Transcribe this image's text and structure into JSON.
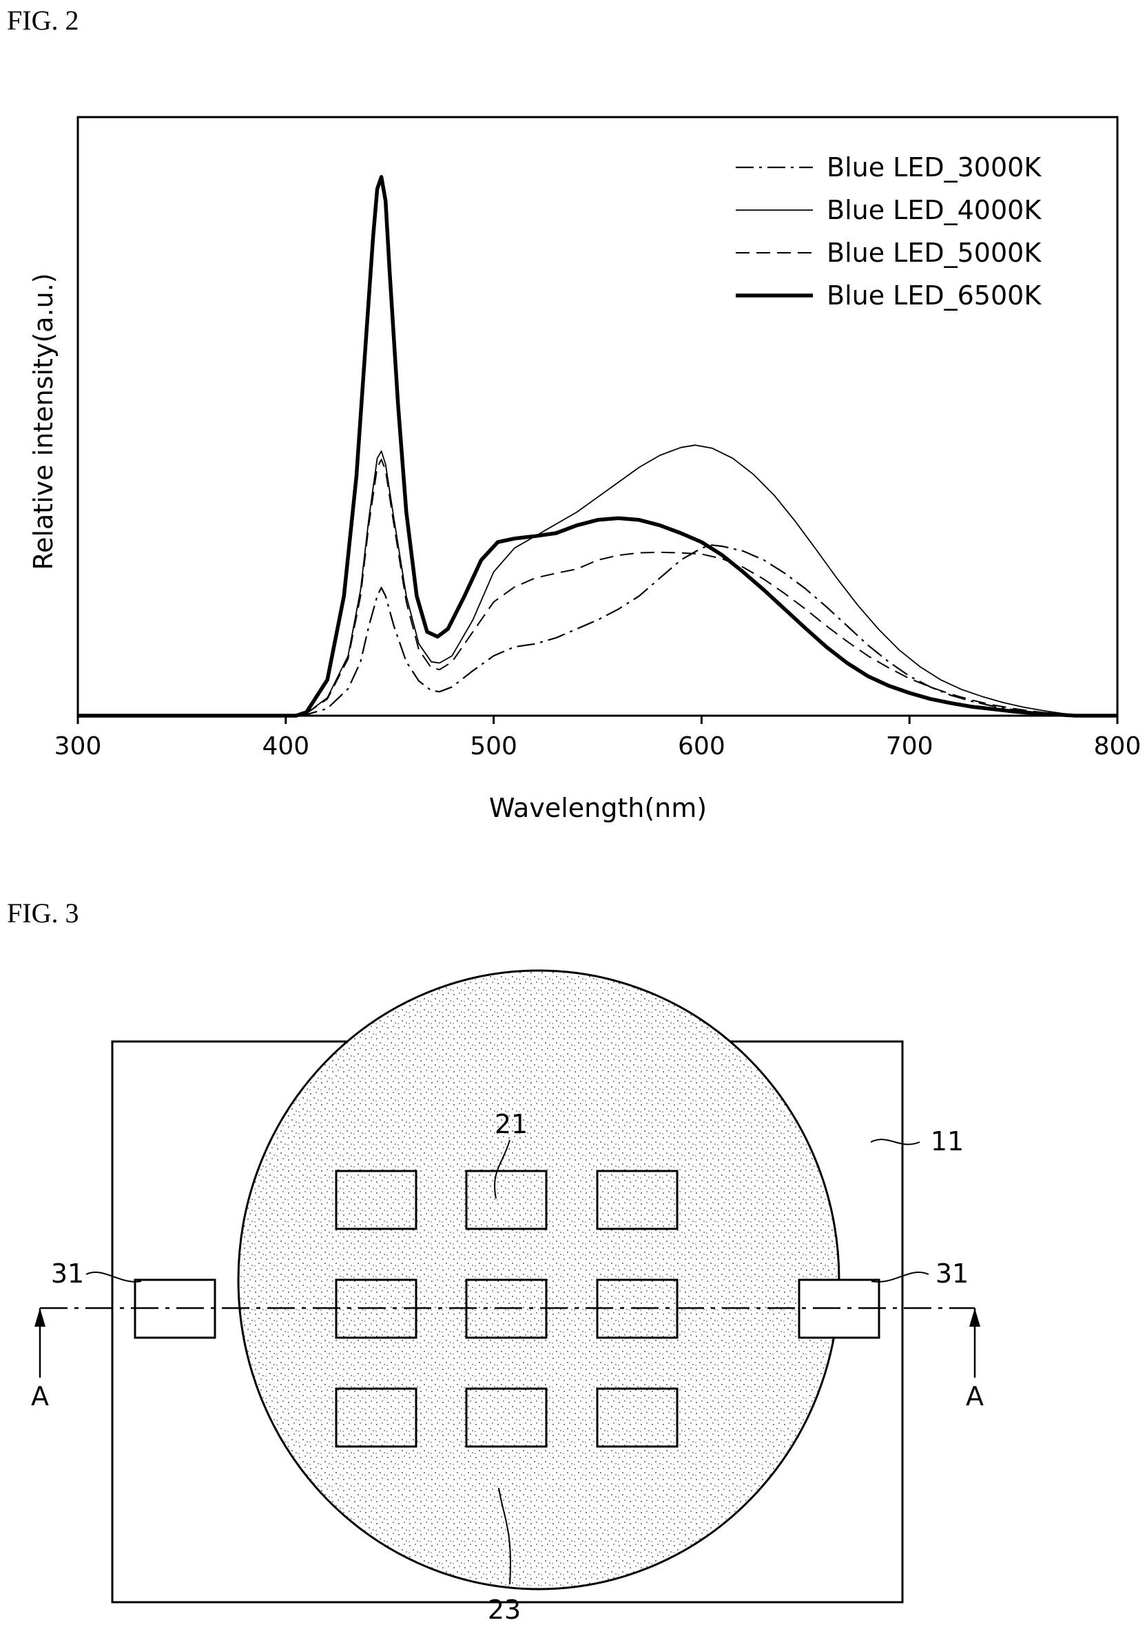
{
  "fig2": {
    "label": "FIG. 2",
    "chart_data": {
      "type": "line",
      "title": "",
      "xlabel": "Wavelength(nm)",
      "ylabel": "Relative intensity(a.u.)",
      "xlim": [
        300,
        800
      ],
      "ylim": [
        0,
        1.0
      ],
      "xticks": [
        300,
        400,
        500,
        600,
        700,
        800
      ],
      "legend_position": "top-right",
      "series": [
        {
          "name": "Blue LED_3000K",
          "style": "dash-dot",
          "points": [
            [
              300,
              0
            ],
            [
              400,
              0
            ],
            [
              410,
              0.002
            ],
            [
              420,
              0.012
            ],
            [
              430,
              0.045
            ],
            [
              436,
              0.09
            ],
            [
              440,
              0.15
            ],
            [
              444,
              0.2
            ],
            [
              446,
              0.214
            ],
            [
              448,
              0.2
            ],
            [
              452,
              0.15
            ],
            [
              458,
              0.09
            ],
            [
              464,
              0.058
            ],
            [
              470,
              0.042
            ],
            [
              474,
              0.04
            ],
            [
              480,
              0.048
            ],
            [
              490,
              0.075
            ],
            [
              500,
              0.1
            ],
            [
              510,
              0.115
            ],
            [
              520,
              0.12
            ],
            [
              530,
              0.13
            ],
            [
              540,
              0.145
            ],
            [
              550,
              0.16
            ],
            [
              560,
              0.178
            ],
            [
              570,
              0.2
            ],
            [
              580,
              0.23
            ],
            [
              590,
              0.26
            ],
            [
              600,
              0.28
            ],
            [
              605,
              0.285
            ],
            [
              610,
              0.283
            ],
            [
              620,
              0.275
            ],
            [
              630,
              0.26
            ],
            [
              640,
              0.238
            ],
            [
              650,
              0.212
            ],
            [
              660,
              0.182
            ],
            [
              670,
              0.15
            ],
            [
              680,
              0.118
            ],
            [
              690,
              0.09
            ],
            [
              700,
              0.066
            ],
            [
              710,
              0.048
            ],
            [
              720,
              0.034
            ],
            [
              730,
              0.024
            ],
            [
              740,
              0.016
            ],
            [
              750,
              0.01
            ],
            [
              760,
              0.006
            ],
            [
              770,
              0.003
            ],
            [
              780,
              0.0
            ],
            [
              800,
              0
            ]
          ]
        },
        {
          "name": "Blue LED_4000K",
          "style": "solid-thin",
          "points": [
            [
              300,
              0
            ],
            [
              400,
              0
            ],
            [
              410,
              0.004
            ],
            [
              420,
              0.03
            ],
            [
              430,
              0.1
            ],
            [
              436,
              0.21
            ],
            [
              440,
              0.33
            ],
            [
              444,
              0.43
            ],
            [
              446,
              0.442
            ],
            [
              448,
              0.42
            ],
            [
              452,
              0.33
            ],
            [
              458,
              0.2
            ],
            [
              464,
              0.12
            ],
            [
              470,
              0.09
            ],
            [
              474,
              0.088
            ],
            [
              480,
              0.1
            ],
            [
              490,
              0.16
            ],
            [
              500,
              0.24
            ],
            [
              510,
              0.28
            ],
            [
              520,
              0.3
            ],
            [
              530,
              0.32
            ],
            [
              540,
              0.34
            ],
            [
              550,
              0.365
            ],
            [
              560,
              0.39
            ],
            [
              570,
              0.415
            ],
            [
              580,
              0.435
            ],
            [
              590,
              0.448
            ],
            [
              597,
              0.452
            ],
            [
              605,
              0.447
            ],
            [
              615,
              0.43
            ],
            [
              625,
              0.403
            ],
            [
              635,
              0.368
            ],
            [
              645,
              0.325
            ],
            [
              655,
              0.278
            ],
            [
              665,
              0.23
            ],
            [
              675,
              0.185
            ],
            [
              685,
              0.145
            ],
            [
              695,
              0.11
            ],
            [
              705,
              0.082
            ],
            [
              715,
              0.06
            ],
            [
              725,
              0.044
            ],
            [
              735,
              0.032
            ],
            [
              745,
              0.022
            ],
            [
              755,
              0.014
            ],
            [
              765,
              0.008
            ],
            [
              775,
              0.003
            ],
            [
              780,
              0.0
            ],
            [
              800,
              0
            ]
          ]
        },
        {
          "name": "Blue LED_5000K",
          "style": "dashed",
          "points": [
            [
              300,
              0
            ],
            [
              400,
              0
            ],
            [
              410,
              0.004
            ],
            [
              420,
              0.028
            ],
            [
              430,
              0.095
            ],
            [
              436,
              0.2
            ],
            [
              440,
              0.32
            ],
            [
              444,
              0.415
            ],
            [
              446,
              0.428
            ],
            [
              448,
              0.41
            ],
            [
              452,
              0.32
            ],
            [
              458,
              0.19
            ],
            [
              464,
              0.11
            ],
            [
              470,
              0.08
            ],
            [
              474,
              0.077
            ],
            [
              480,
              0.09
            ],
            [
              490,
              0.14
            ],
            [
              500,
              0.19
            ],
            [
              510,
              0.215
            ],
            [
              520,
              0.23
            ],
            [
              530,
              0.238
            ],
            [
              540,
              0.245
            ],
            [
              550,
              0.26
            ],
            [
              560,
              0.268
            ],
            [
              570,
              0.272
            ],
            [
              580,
              0.273
            ],
            [
              590,
              0.272
            ],
            [
              600,
              0.27
            ],
            [
              610,
              0.262
            ],
            [
              620,
              0.248
            ],
            [
              630,
              0.228
            ],
            [
              640,
              0.204
            ],
            [
              650,
              0.178
            ],
            [
              660,
              0.15
            ],
            [
              670,
              0.124
            ],
            [
              680,
              0.1
            ],
            [
              690,
              0.08
            ],
            [
              700,
              0.062
            ],
            [
              710,
              0.048
            ],
            [
              720,
              0.036
            ],
            [
              730,
              0.026
            ],
            [
              740,
              0.018
            ],
            [
              750,
              0.012
            ],
            [
              760,
              0.007
            ],
            [
              770,
              0.003
            ],
            [
              780,
              0.0
            ],
            [
              800,
              0
            ]
          ]
        },
        {
          "name": "Blue LED_6500K",
          "style": "solid-thick",
          "points": [
            [
              300,
              0
            ],
            [
              405,
              0
            ],
            [
              410,
              0.006
            ],
            [
              420,
              0.06
            ],
            [
              428,
              0.2
            ],
            [
              434,
              0.4
            ],
            [
              438,
              0.6
            ],
            [
              442,
              0.8
            ],
            [
              444,
              0.88
            ],
            [
              446,
              0.9
            ],
            [
              448,
              0.86
            ],
            [
              450,
              0.74
            ],
            [
              454,
              0.52
            ],
            [
              458,
              0.34
            ],
            [
              463,
              0.2
            ],
            [
              468,
              0.14
            ],
            [
              473,
              0.132
            ],
            [
              478,
              0.145
            ],
            [
              486,
              0.2
            ],
            [
              494,
              0.26
            ],
            [
              502,
              0.29
            ],
            [
              510,
              0.296
            ],
            [
              520,
              0.3
            ],
            [
              530,
              0.305
            ],
            [
              540,
              0.318
            ],
            [
              550,
              0.327
            ],
            [
              560,
              0.33
            ],
            [
              570,
              0.327
            ],
            [
              580,
              0.318
            ],
            [
              590,
              0.305
            ],
            [
              600,
              0.29
            ],
            [
              610,
              0.268
            ],
            [
              620,
              0.24
            ],
            [
              630,
              0.21
            ],
            [
              640,
              0.178
            ],
            [
              650,
              0.146
            ],
            [
              660,
              0.115
            ],
            [
              670,
              0.088
            ],
            [
              680,
              0.066
            ],
            [
              690,
              0.05
            ],
            [
              700,
              0.038
            ],
            [
              710,
              0.028
            ],
            [
              720,
              0.021
            ],
            [
              730,
              0.015
            ],
            [
              740,
              0.011
            ],
            [
              750,
              0.007
            ],
            [
              760,
              0.004
            ],
            [
              770,
              0.002
            ],
            [
              780,
              0.0
            ],
            [
              800,
              0
            ]
          ]
        }
      ]
    }
  },
  "fig3": {
    "label": "FIG. 3",
    "refs": {
      "top": "21",
      "bottom": "23",
      "substrate": "11",
      "left_pad": "31",
      "right_pad": "31",
      "section_left": "A",
      "section_right": "A"
    }
  }
}
